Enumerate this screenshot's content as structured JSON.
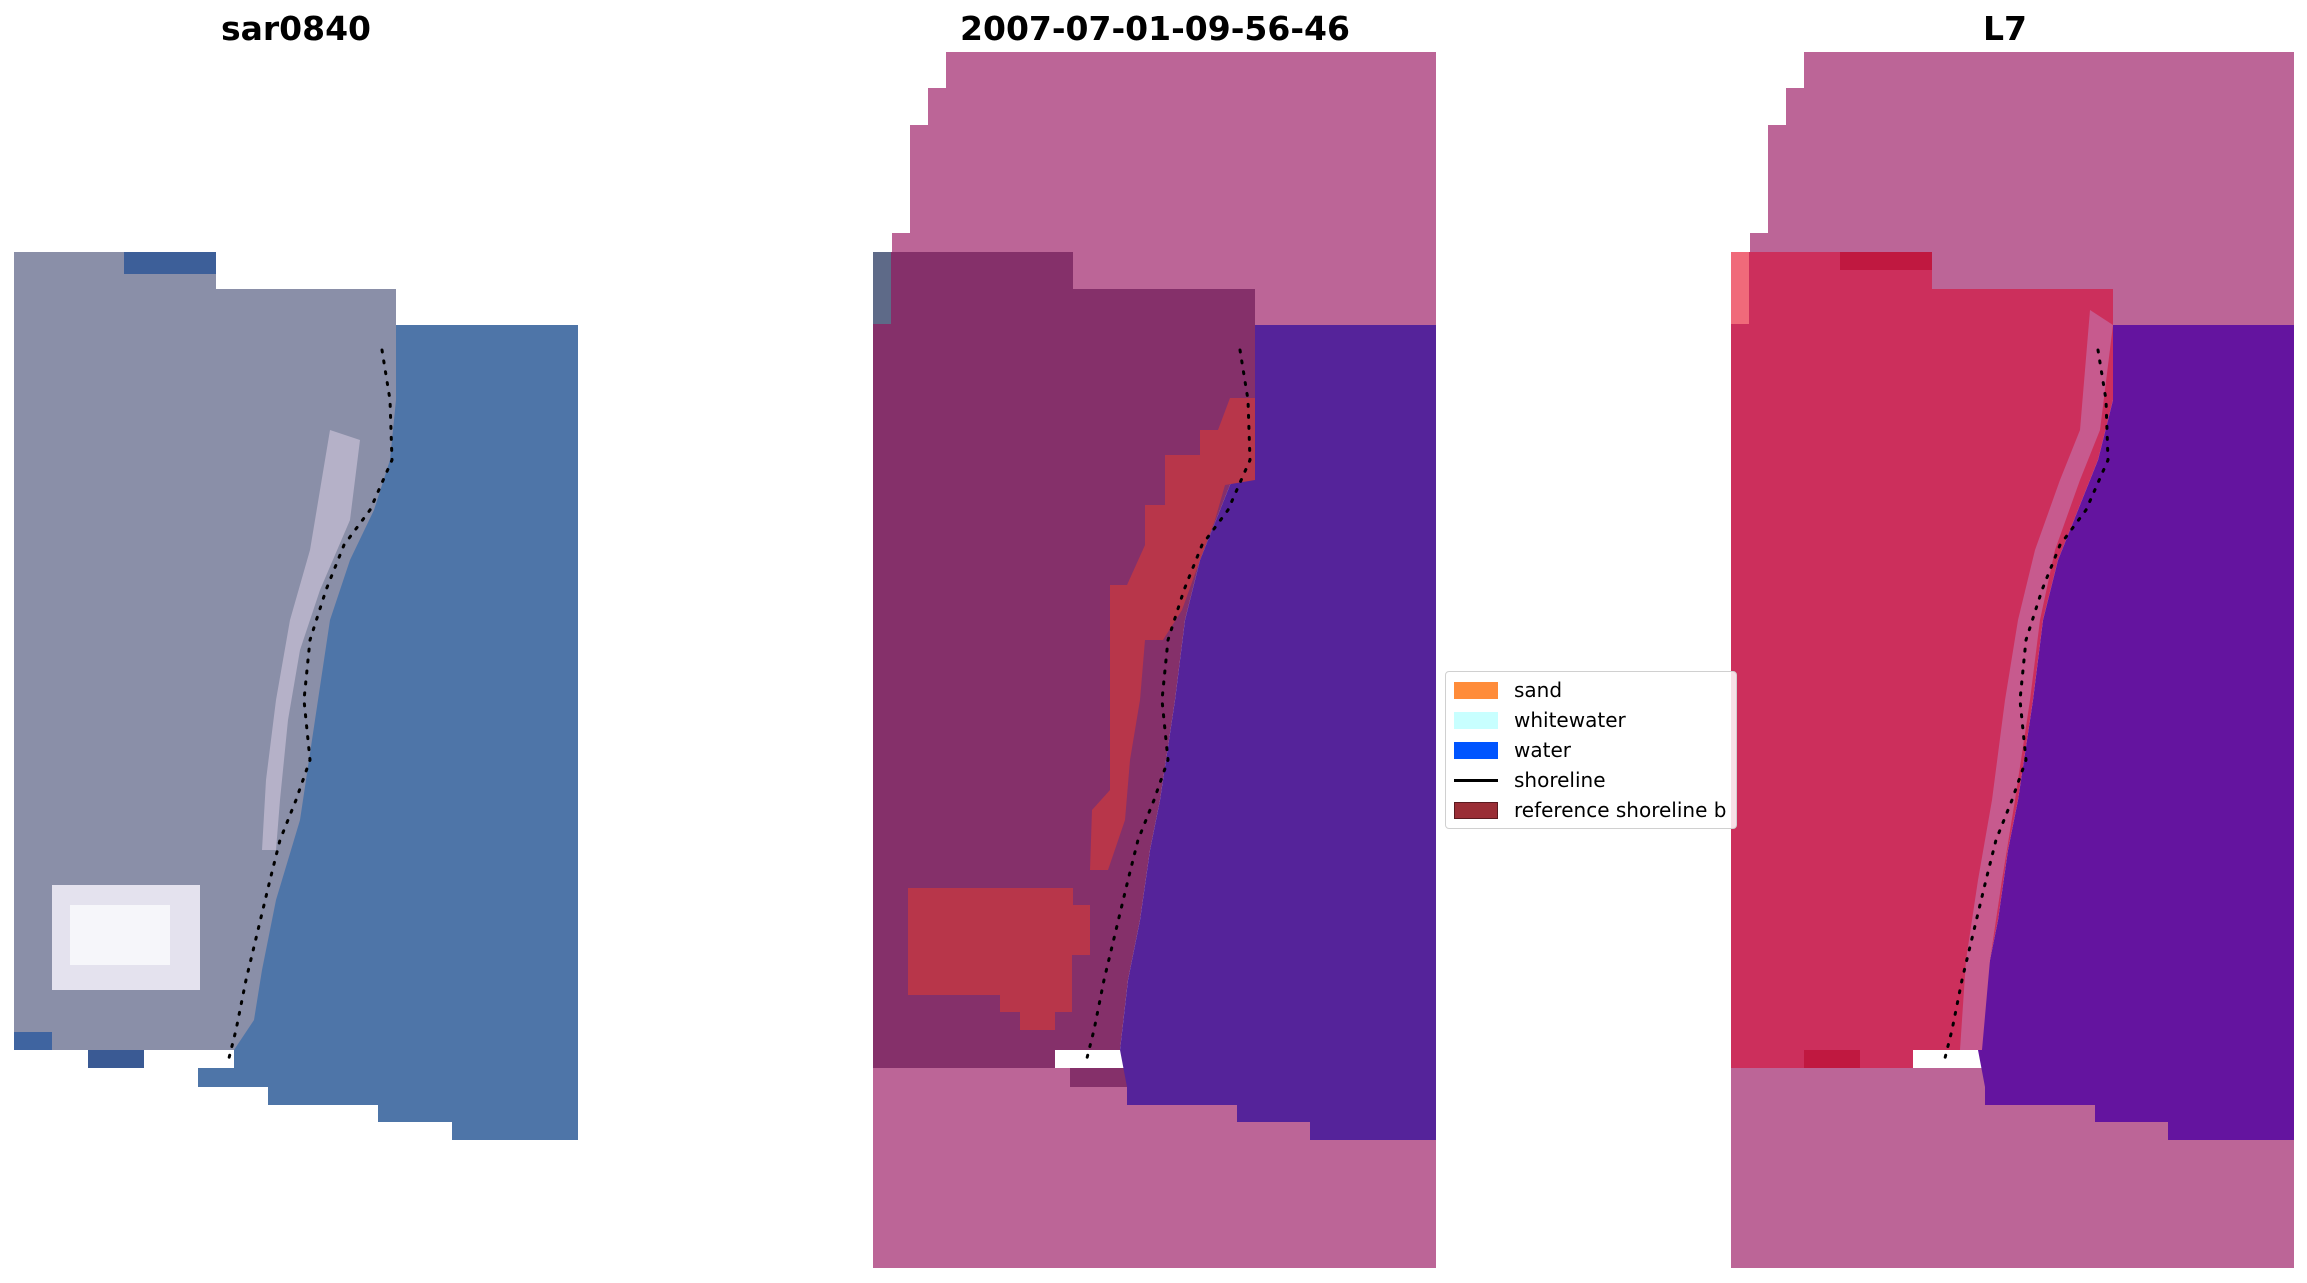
{
  "panels": [
    {
      "title": "sar0840"
    },
    {
      "title": "2007-07-01-09-56-46"
    },
    {
      "title": "L7"
    }
  ],
  "legend": {
    "items": [
      {
        "label": "sand",
        "color": "#ff8c3a",
        "kind": "patch"
      },
      {
        "label": "whitewater",
        "color": "#c8ffff",
        "kind": "patch"
      },
      {
        "label": "water",
        "color": "#0055ff",
        "kind": "patch"
      },
      {
        "label": "shoreline",
        "color": "#000000",
        "kind": "line"
      },
      {
        "label": "reference shoreline b",
        "color": "#9a2e36",
        "kind": "patch"
      }
    ]
  },
  "colors": {
    "land_rgb": "#8a8fa8",
    "water_rgb": "#4e75a8",
    "masked_pink": "#bc6597",
    "land_class": "#85306a",
    "water_class": "#55239a",
    "ref_buffer": "#b8364a",
    "land_nir": "#cc2f5c",
    "water_nir": "#64149f"
  }
}
